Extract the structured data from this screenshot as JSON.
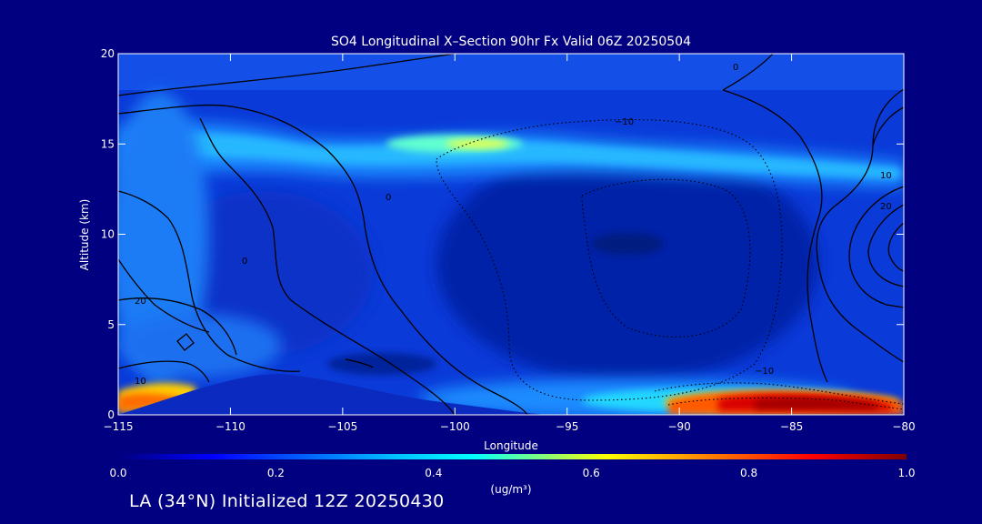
{
  "chart_data": {
    "type": "heatmap",
    "title": "SO4 Longitudinal X–Section 90hr  Fx Valid 06Z 20250504",
    "xlabel": "Longitude",
    "ylabel": "Altitude (km)",
    "xlim": [
      -115,
      -80
    ],
    "ylim": [
      0,
      20
    ],
    "xticks": [
      -115,
      -110,
      -105,
      -100,
      -95,
      -90,
      -85,
      -80
    ],
    "xtick_labels": [
      "−115",
      "−110",
      "−105",
      "−100",
      "−95",
      "−90",
      "−85",
      "−80"
    ],
    "yticks": [
      0,
      5,
      10,
      15,
      20
    ],
    "ytick_labels": [
      "0",
      "5",
      "10",
      "15",
      "20"
    ],
    "colorbar": {
      "min": 0.0,
      "max": 1.0,
      "ticks": [
        0.0,
        0.2,
        0.4,
        0.6,
        0.8,
        1.0
      ],
      "tick_labels": [
        "0.0",
        "0.2",
        "0.4",
        "0.6",
        "0.8",
        "1.0"
      ],
      "units": "(ug/m³)",
      "colormap": [
        "#00007f",
        "#0000ff",
        "#00bfff",
        "#00ffff",
        "#ffff00",
        "#ff8000",
        "#ff0000",
        "#800000"
      ]
    },
    "features": [
      {
        "label": "upper-level SO4 band",
        "lon_range": [
          -113,
          -82
        ],
        "alt_center": 14.8,
        "peak_value": 0.58,
        "peak_lon": -99
      },
      {
        "label": "low-level SO4 near surface (east)",
        "lon_range": [
          -90,
          -80
        ],
        "alt_center": 0.6,
        "peak_value": 0.95
      },
      {
        "label": "low-level SO4 near surface (west)",
        "lon_range": [
          -115,
          -112
        ],
        "alt_center": 0.8,
        "peak_value": 0.7
      }
    ],
    "contour_labels": [
      "−10",
      "0",
      "10",
      "20",
      "−10",
      "0",
      "10",
      "0",
      "20"
    ]
  },
  "footer": "LA (34°N) Initialized 12Z 20250430",
  "colors": {
    "background": "#000080",
    "axis": "#ffffff",
    "text": "#ffffff"
  }
}
